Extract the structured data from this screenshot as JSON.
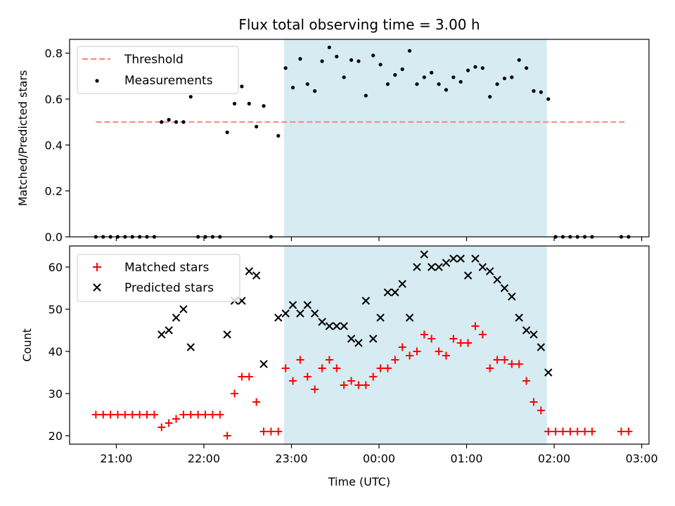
{
  "chart_data": [
    {
      "type": "scatter",
      "title": "Flux total observing time = 3.00 h",
      "ylabel": "Matched/Predicted stars",
      "xlabel": "",
      "ylim": [
        0,
        0.86
      ],
      "yticks": [
        0.0,
        0.2,
        0.4,
        0.6,
        0.8
      ],
      "ytick_labels": [
        "0.0",
        "0.2",
        "0.4",
        "0.6",
        "0.8"
      ],
      "xlim": [
        "20:28",
        "03:05"
      ],
      "xticks": [
        "21:00",
        "22:00",
        "23:00",
        "00:00",
        "01:00",
        "02:00",
        "03:00"
      ],
      "xtick_labels_shown": false,
      "observing_window": [
        "22:55",
        "01:55"
      ],
      "legend_position": "upper-left",
      "threshold": {
        "name": "Threshold",
        "x": [
          "20:46",
          "02:50"
        ],
        "y": 0.5,
        "color": "#ff7f7f"
      },
      "series": [
        {
          "name": "Measurements",
          "color": "#000000",
          "marker": "dot",
          "x": [
            "20:46",
            "20:51",
            "20:56",
            "21:01",
            "21:06",
            "21:11",
            "21:16",
            "21:21",
            "21:26",
            "21:31",
            "21:36",
            "21:41",
            "21:46",
            "21:51",
            "21:56",
            "22:01",
            "22:06",
            "22:11",
            "22:16",
            "22:21",
            "22:26",
            "22:31",
            "22:36",
            "22:41",
            "22:46",
            "22:51",
            "22:56",
            "23:01",
            "23:06",
            "23:11",
            "23:16",
            "23:21",
            "23:26",
            "23:31",
            "23:36",
            "23:41",
            "23:46",
            "23:51",
            "23:56",
            "00:01",
            "00:06",
            "00:11",
            "00:16",
            "00:21",
            "00:26",
            "00:31",
            "00:36",
            "00:41",
            "00:46",
            "00:51",
            "00:56",
            "01:01",
            "01:06",
            "01:11",
            "01:16",
            "01:21",
            "01:26",
            "01:31",
            "01:36",
            "01:41",
            "01:46",
            "01:51",
            "01:56",
            "02:01",
            "02:06",
            "02:11",
            "02:16",
            "02:21",
            "02:26",
            "02:46",
            "02:51"
          ],
          "y": [
            0,
            0,
            0,
            0,
            0,
            0,
            0,
            0,
            0,
            0.5,
            0.51,
            0.5,
            0.5,
            0.61,
            0,
            0,
            0,
            0,
            0.455,
            0.58,
            0.655,
            0.58,
            0.48,
            0.57,
            0,
            0.44,
            0.735,
            0.65,
            0.775,
            0.665,
            0.635,
            0.765,
            0.825,
            0.785,
            0.695,
            0.77,
            0.765,
            0.615,
            0.79,
            0.75,
            0.665,
            0.705,
            0.73,
            0.81,
            0.665,
            0.695,
            0.715,
            0.665,
            0.64,
            0.695,
            0.675,
            0.725,
            0.74,
            0.735,
            0.61,
            0.665,
            0.69,
            0.695,
            0.77,
            0.735,
            0.635,
            0.63,
            0.6,
            0,
            0,
            0,
            0,
            0,
            0,
            0,
            0
          ]
        }
      ]
    },
    {
      "type": "scatter",
      "title": "",
      "ylabel": "Count",
      "xlabel": "Time (UTC)",
      "ylim": [
        18,
        65
      ],
      "yticks": [
        20,
        30,
        40,
        50,
        60
      ],
      "ytick_labels": [
        "20",
        "30",
        "40",
        "50",
        "60"
      ],
      "xlim": [
        "20:28",
        "03:05"
      ],
      "xticks": [
        "21:00",
        "22:00",
        "23:00",
        "00:00",
        "01:00",
        "02:00",
        "03:00"
      ],
      "xtick_labels": [
        "21:00",
        "22:00",
        "23:00",
        "00:00",
        "01:00",
        "02:00",
        "03:00"
      ],
      "observing_window": [
        "22:55",
        "01:55"
      ],
      "legend_position": "upper-left",
      "series": [
        {
          "name": "Matched stars",
          "color": "#ff0000",
          "marker": "plus",
          "x": [
            "20:46",
            "20:51",
            "20:56",
            "21:01",
            "21:06",
            "21:11",
            "21:16",
            "21:21",
            "21:26",
            "21:31",
            "21:36",
            "21:41",
            "21:46",
            "21:51",
            "21:56",
            "22:01",
            "22:06",
            "22:11",
            "22:16",
            "22:21",
            "22:26",
            "22:31",
            "22:36",
            "22:41",
            "22:46",
            "22:51",
            "22:56",
            "23:01",
            "23:06",
            "23:11",
            "23:16",
            "23:21",
            "23:26",
            "23:31",
            "23:36",
            "23:41",
            "23:46",
            "23:51",
            "23:56",
            "00:01",
            "00:06",
            "00:11",
            "00:16",
            "00:21",
            "00:26",
            "00:31",
            "00:36",
            "00:41",
            "00:46",
            "00:51",
            "00:56",
            "01:01",
            "01:06",
            "01:11",
            "01:16",
            "01:21",
            "01:26",
            "01:31",
            "01:36",
            "01:41",
            "01:46",
            "01:51",
            "01:56",
            "02:01",
            "02:06",
            "02:11",
            "02:16",
            "02:21",
            "02:26",
            "02:46",
            "02:51"
          ],
          "y": [
            25,
            25,
            25,
            25,
            25,
            25,
            25,
            25,
            25,
            22,
            23,
            24,
            25,
            25,
            25,
            25,
            25,
            25,
            20,
            30,
            34,
            34,
            28,
            21,
            21,
            21,
            36,
            33,
            38,
            34,
            31,
            36,
            38,
            36,
            32,
            33,
            32,
            32,
            34,
            36,
            36,
            38,
            41,
            39,
            40,
            44,
            43,
            40,
            39,
            43,
            42,
            42,
            46,
            44,
            36,
            38,
            38,
            37,
            37,
            33,
            28,
            26,
            21,
            21,
            21,
            21,
            21,
            21,
            21,
            21,
            21
          ]
        },
        {
          "name": "Predicted stars",
          "color": "#000000",
          "marker": "x",
          "x": [
            "21:31",
            "21:36",
            "21:41",
            "21:46",
            "21:51",
            "22:16",
            "22:21",
            "22:26",
            "22:31",
            "22:36",
            "22:41",
            "22:51",
            "22:56",
            "23:01",
            "23:06",
            "23:11",
            "23:16",
            "23:21",
            "23:26",
            "23:31",
            "23:36",
            "23:41",
            "23:46",
            "23:51",
            "23:56",
            "00:01",
            "00:06",
            "00:11",
            "00:16",
            "00:21",
            "00:26",
            "00:31",
            "00:36",
            "00:41",
            "00:46",
            "00:51",
            "00:56",
            "01:01",
            "01:06",
            "01:11",
            "01:16",
            "01:21",
            "01:26",
            "01:31",
            "01:36",
            "01:41",
            "01:46",
            "01:51",
            "01:56"
          ],
          "y": [
            44,
            45,
            48,
            50,
            41,
            44,
            52,
            52,
            59,
            58,
            37,
            48,
            49,
            51,
            49,
            51,
            49,
            47,
            46,
            46,
            46,
            43,
            42,
            52,
            43,
            48,
            54,
            54,
            56,
            48,
            60,
            63,
            60,
            60,
            61,
            62,
            62,
            58,
            62,
            60,
            59,
            57,
            55,
            53,
            48,
            45,
            44,
            41,
            35
          ]
        }
      ]
    }
  ]
}
